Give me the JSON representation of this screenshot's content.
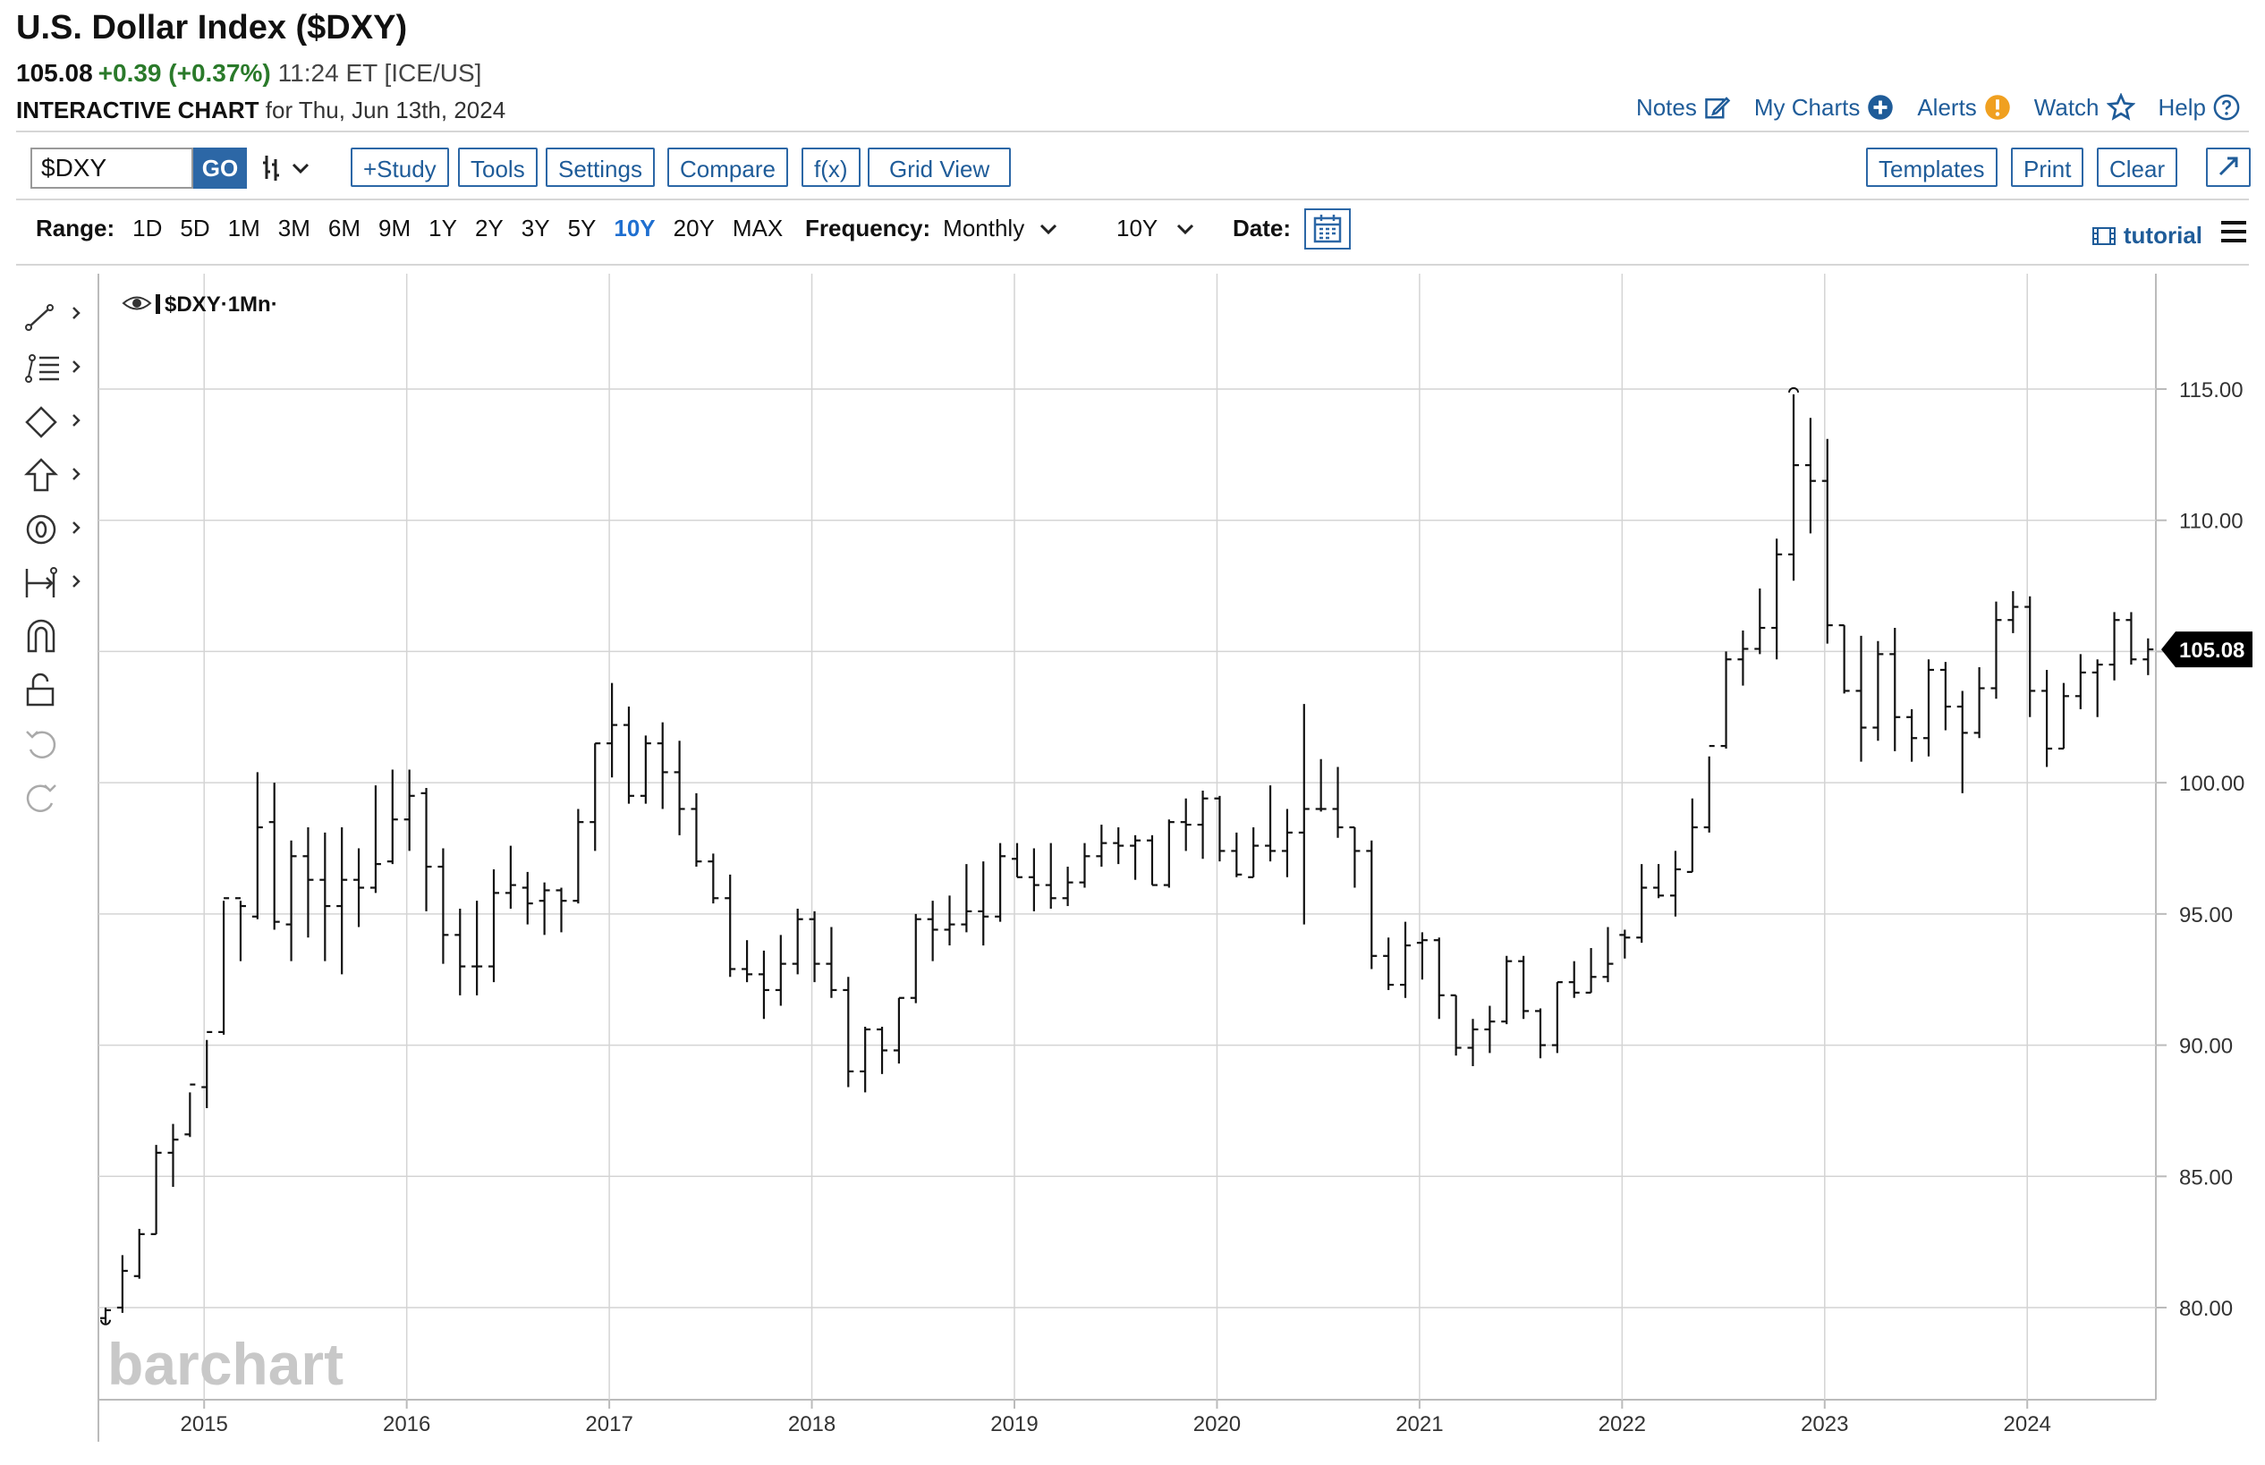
{
  "header": {
    "title": "U.S. Dollar Index ($DXY)",
    "last": "105.08",
    "change": "+0.39 (+0.37%)",
    "time": "11:24 ET [ICE/US]",
    "interactive_label": "INTERACTIVE CHART",
    "date_text": "for Thu, Jun 13th, 2024"
  },
  "toplinks": {
    "notes": "Notes",
    "mycharts": "My Charts",
    "alerts": "Alerts",
    "watch": "Watch",
    "help": "Help"
  },
  "toolbar": {
    "symbol": "$DXY",
    "go": "GO",
    "study": "+Study",
    "tools": "Tools",
    "settings": "Settings",
    "compare": "Compare",
    "fx": "f(x)",
    "gridview": "Grid View",
    "templates": "Templates",
    "print": "Print",
    "clear": "Clear"
  },
  "rangebar": {
    "label": "Range:",
    "ranges": [
      "1D",
      "5D",
      "1M",
      "3M",
      "6M",
      "9M",
      "1Y",
      "2Y",
      "3Y",
      "5Y",
      "10Y",
      "20Y",
      "MAX"
    ],
    "active": "10Y",
    "frequency_label": "Frequency:",
    "frequency": "Monthly",
    "period": "10Y",
    "date_label": "Date:",
    "tutorial": "tutorial"
  },
  "legend": "$DXY·1Mn·",
  "watermark": "barchart",
  "last_value_label": "105.08",
  "chart_data": {
    "type": "ohlc",
    "frequency": "Monthly",
    "symbol": "$DXY",
    "ylim": [
      76.5,
      118.5
    ],
    "yticks": [
      "80.00",
      "85.00",
      "90.00",
      "95.00",
      "100.00",
      "105.00",
      "110.00",
      "115.00"
    ],
    "xticks": [
      "2015",
      "2016",
      "2017",
      "2018",
      "2019",
      "2020",
      "2021",
      "2022",
      "2023",
      "2024"
    ],
    "start_month": "2014-07",
    "last_price": 105.08,
    "high_marker": 114.8,
    "low_marker": 79.6,
    "bars": [
      [
        79.6,
        80.0,
        79.4,
        79.9
      ],
      [
        80.0,
        82.0,
        79.8,
        81.4
      ],
      [
        81.2,
        83.0,
        81.1,
        82.8
      ],
      [
        82.8,
        86.2,
        82.8,
        85.9
      ],
      [
        85.9,
        87.0,
        84.6,
        86.4
      ],
      [
        86.6,
        88.2,
        86.5,
        88.5
      ],
      [
        88.4,
        90.2,
        87.6,
        90.5
      ],
      [
        90.5,
        95.5,
        90.4,
        95.6
      ],
      [
        95.6,
        95.5,
        93.2,
        95.3
      ],
      [
        94.9,
        100.4,
        94.8,
        98.3
      ],
      [
        98.5,
        100.0,
        94.4,
        94.7
      ],
      [
        94.6,
        97.8,
        93.2,
        97.2
      ],
      [
        97.2,
        98.3,
        94.1,
        96.3
      ],
      [
        96.3,
        98.1,
        93.2,
        95.3
      ],
      [
        95.3,
        98.3,
        92.7,
        96.3
      ],
      [
        96.3,
        97.5,
        94.5,
        96.0
      ],
      [
        96.0,
        99.9,
        95.8,
        96.9
      ],
      [
        97.0,
        100.5,
        96.9,
        98.6
      ],
      [
        98.6,
        100.5,
        97.4,
        99.5
      ],
      [
        99.6,
        99.8,
        95.1,
        96.8
      ],
      [
        96.8,
        97.5,
        93.1,
        94.2
      ],
      [
        94.2,
        95.2,
        91.9,
        93.0
      ],
      [
        93.0,
        95.5,
        91.9,
        93.0
      ],
      [
        93.0,
        96.7,
        92.4,
        95.8
      ],
      [
        95.8,
        97.6,
        95.2,
        96.1
      ],
      [
        96.0,
        96.6,
        94.6,
        95.4
      ],
      [
        95.5,
        96.2,
        94.2,
        95.9
      ],
      [
        95.9,
        96.0,
        94.3,
        95.5
      ],
      [
        95.5,
        99.0,
        95.4,
        98.5
      ],
      [
        98.5,
        101.5,
        97.4,
        101.5
      ],
      [
        101.5,
        103.8,
        100.2,
        102.2
      ],
      [
        102.2,
        102.9,
        99.2,
        99.5
      ],
      [
        99.5,
        101.8,
        99.2,
        101.5
      ],
      [
        101.5,
        102.3,
        99.0,
        100.4
      ],
      [
        100.4,
        101.6,
        98.0,
        99.0
      ],
      [
        99.0,
        99.6,
        96.8,
        97.0
      ],
      [
        97.0,
        97.3,
        95.4,
        95.6
      ],
      [
        95.6,
        96.5,
        92.6,
        92.9
      ],
      [
        92.9,
        94.0,
        92.4,
        92.7
      ],
      [
        92.7,
        93.6,
        91.0,
        92.1
      ],
      [
        92.1,
        94.2,
        91.5,
        93.1
      ],
      [
        93.1,
        95.2,
        92.7,
        94.8
      ],
      [
        94.8,
        95.1,
        92.4,
        93.1
      ],
      [
        93.1,
        94.5,
        91.8,
        92.1
      ],
      [
        92.1,
        92.6,
        88.4,
        89.0
      ],
      [
        89.0,
        90.7,
        88.2,
        90.6
      ],
      [
        90.6,
        90.7,
        88.9,
        89.8
      ],
      [
        89.8,
        91.8,
        89.3,
        91.8
      ],
      [
        91.8,
        95.0,
        91.6,
        94.8
      ],
      [
        94.8,
        95.5,
        93.2,
        94.4
      ],
      [
        94.4,
        95.7,
        93.8,
        94.6
      ],
      [
        94.6,
        96.9,
        94.3,
        95.1
      ],
      [
        95.1,
        97.0,
        93.8,
        94.9
      ],
      [
        94.9,
        97.7,
        94.7,
        97.2
      ],
      [
        97.1,
        97.7,
        96.4,
        96.4
      ],
      [
        96.4,
        97.5,
        95.1,
        96.1
      ],
      [
        96.1,
        97.7,
        95.2,
        95.6
      ],
      [
        95.6,
        96.8,
        95.3,
        96.2
      ],
      [
        96.2,
        97.7,
        96.0,
        97.2
      ],
      [
        97.2,
        98.4,
        96.8,
        97.7
      ],
      [
        97.7,
        98.3,
        96.9,
        97.6
      ],
      [
        97.6,
        98.0,
        96.3,
        97.8
      ],
      [
        97.8,
        98.0,
        96.1,
        96.1
      ],
      [
        96.1,
        98.6,
        96.0,
        98.5
      ],
      [
        98.5,
        99.4,
        97.4,
        98.4
      ],
      [
        98.4,
        99.7,
        97.1,
        99.4
      ],
      [
        99.4,
        99.5,
        97.0,
        97.4
      ],
      [
        97.4,
        98.1,
        96.4,
        96.5
      ],
      [
        96.4,
        98.3,
        96.4,
        97.6
      ],
      [
        97.6,
        99.9,
        97.0,
        97.4
      ],
      [
        97.4,
        99.0,
        96.4,
        98.1
      ],
      [
        98.1,
        103.0,
        94.6,
        99.0
      ],
      [
        99.0,
        100.9,
        98.9,
        99.0
      ],
      [
        99.0,
        100.6,
        97.9,
        98.3
      ],
      [
        98.3,
        98.3,
        96.0,
        97.4
      ],
      [
        97.4,
        97.8,
        92.9,
        93.4
      ],
      [
        93.4,
        94.1,
        92.1,
        92.3
      ],
      [
        92.3,
        94.7,
        91.8,
        93.8
      ],
      [
        93.9,
        94.3,
        92.5,
        94.0
      ],
      [
        94.0,
        94.1,
        91.0,
        91.9
      ],
      [
        91.9,
        91.9,
        89.6,
        89.9
      ],
      [
        89.9,
        91.0,
        89.2,
        90.6
      ],
      [
        90.6,
        91.5,
        89.7,
        90.9
      ],
      [
        90.9,
        93.4,
        90.8,
        93.2
      ],
      [
        93.2,
        93.4,
        91.0,
        91.3
      ],
      [
        91.3,
        91.4,
        89.5,
        90.0
      ],
      [
        90.0,
        92.4,
        89.7,
        92.4
      ],
      [
        92.4,
        93.2,
        91.8,
        92.0
      ],
      [
        92.0,
        93.7,
        92.0,
        92.6
      ],
      [
        92.6,
        94.5,
        92.4,
        93.1
      ],
      [
        94.2,
        94.4,
        93.3,
        94.1
      ],
      [
        94.1,
        96.9,
        93.9,
        96.0
      ],
      [
        96.0,
        96.9,
        95.6,
        95.7
      ],
      [
        95.7,
        97.4,
        94.9,
        96.7
      ],
      [
        96.6,
        99.4,
        96.6,
        98.3
      ],
      [
        98.3,
        101.0,
        98.1,
        101.4
      ],
      [
        101.4,
        105.0,
        101.3,
        104.7
      ],
      [
        104.7,
        105.8,
        103.7,
        105.1
      ],
      [
        105.1,
        107.4,
        104.9,
        105.9
      ],
      [
        105.9,
        109.3,
        104.7,
        108.7
      ],
      [
        108.7,
        114.8,
        107.7,
        112.1
      ],
      [
        112.1,
        113.9,
        109.5,
        111.5
      ],
      [
        111.5,
        113.1,
        105.3,
        106.0
      ],
      [
        106.0,
        106.0,
        103.4,
        103.5
      ],
      [
        103.5,
        105.6,
        100.8,
        102.1
      ],
      [
        102.1,
        105.4,
        101.6,
        104.9
      ],
      [
        104.9,
        105.9,
        101.2,
        102.5
      ],
      [
        102.5,
        102.8,
        100.8,
        101.7
      ],
      [
        101.7,
        104.7,
        101.0,
        104.3
      ],
      [
        104.3,
        104.6,
        102.0,
        102.9
      ],
      [
        102.9,
        103.5,
        99.6,
        101.9
      ],
      [
        101.9,
        104.4,
        101.7,
        103.6
      ],
      [
        103.6,
        106.9,
        103.2,
        106.2
      ],
      [
        106.2,
        107.3,
        105.7,
        106.7
      ],
      [
        106.7,
        107.1,
        102.5,
        103.5
      ],
      [
        103.5,
        104.3,
        100.6,
        101.3
      ],
      [
        101.3,
        103.8,
        101.3,
        103.3
      ],
      [
        103.3,
        104.9,
        102.8,
        104.2
      ],
      [
        104.2,
        104.7,
        102.5,
        104.5
      ],
      [
        104.5,
        106.5,
        103.9,
        106.2
      ],
      [
        106.2,
        106.5,
        104.5,
        104.7
      ],
      [
        104.7,
        105.5,
        104.1,
        105.08
      ]
    ]
  }
}
